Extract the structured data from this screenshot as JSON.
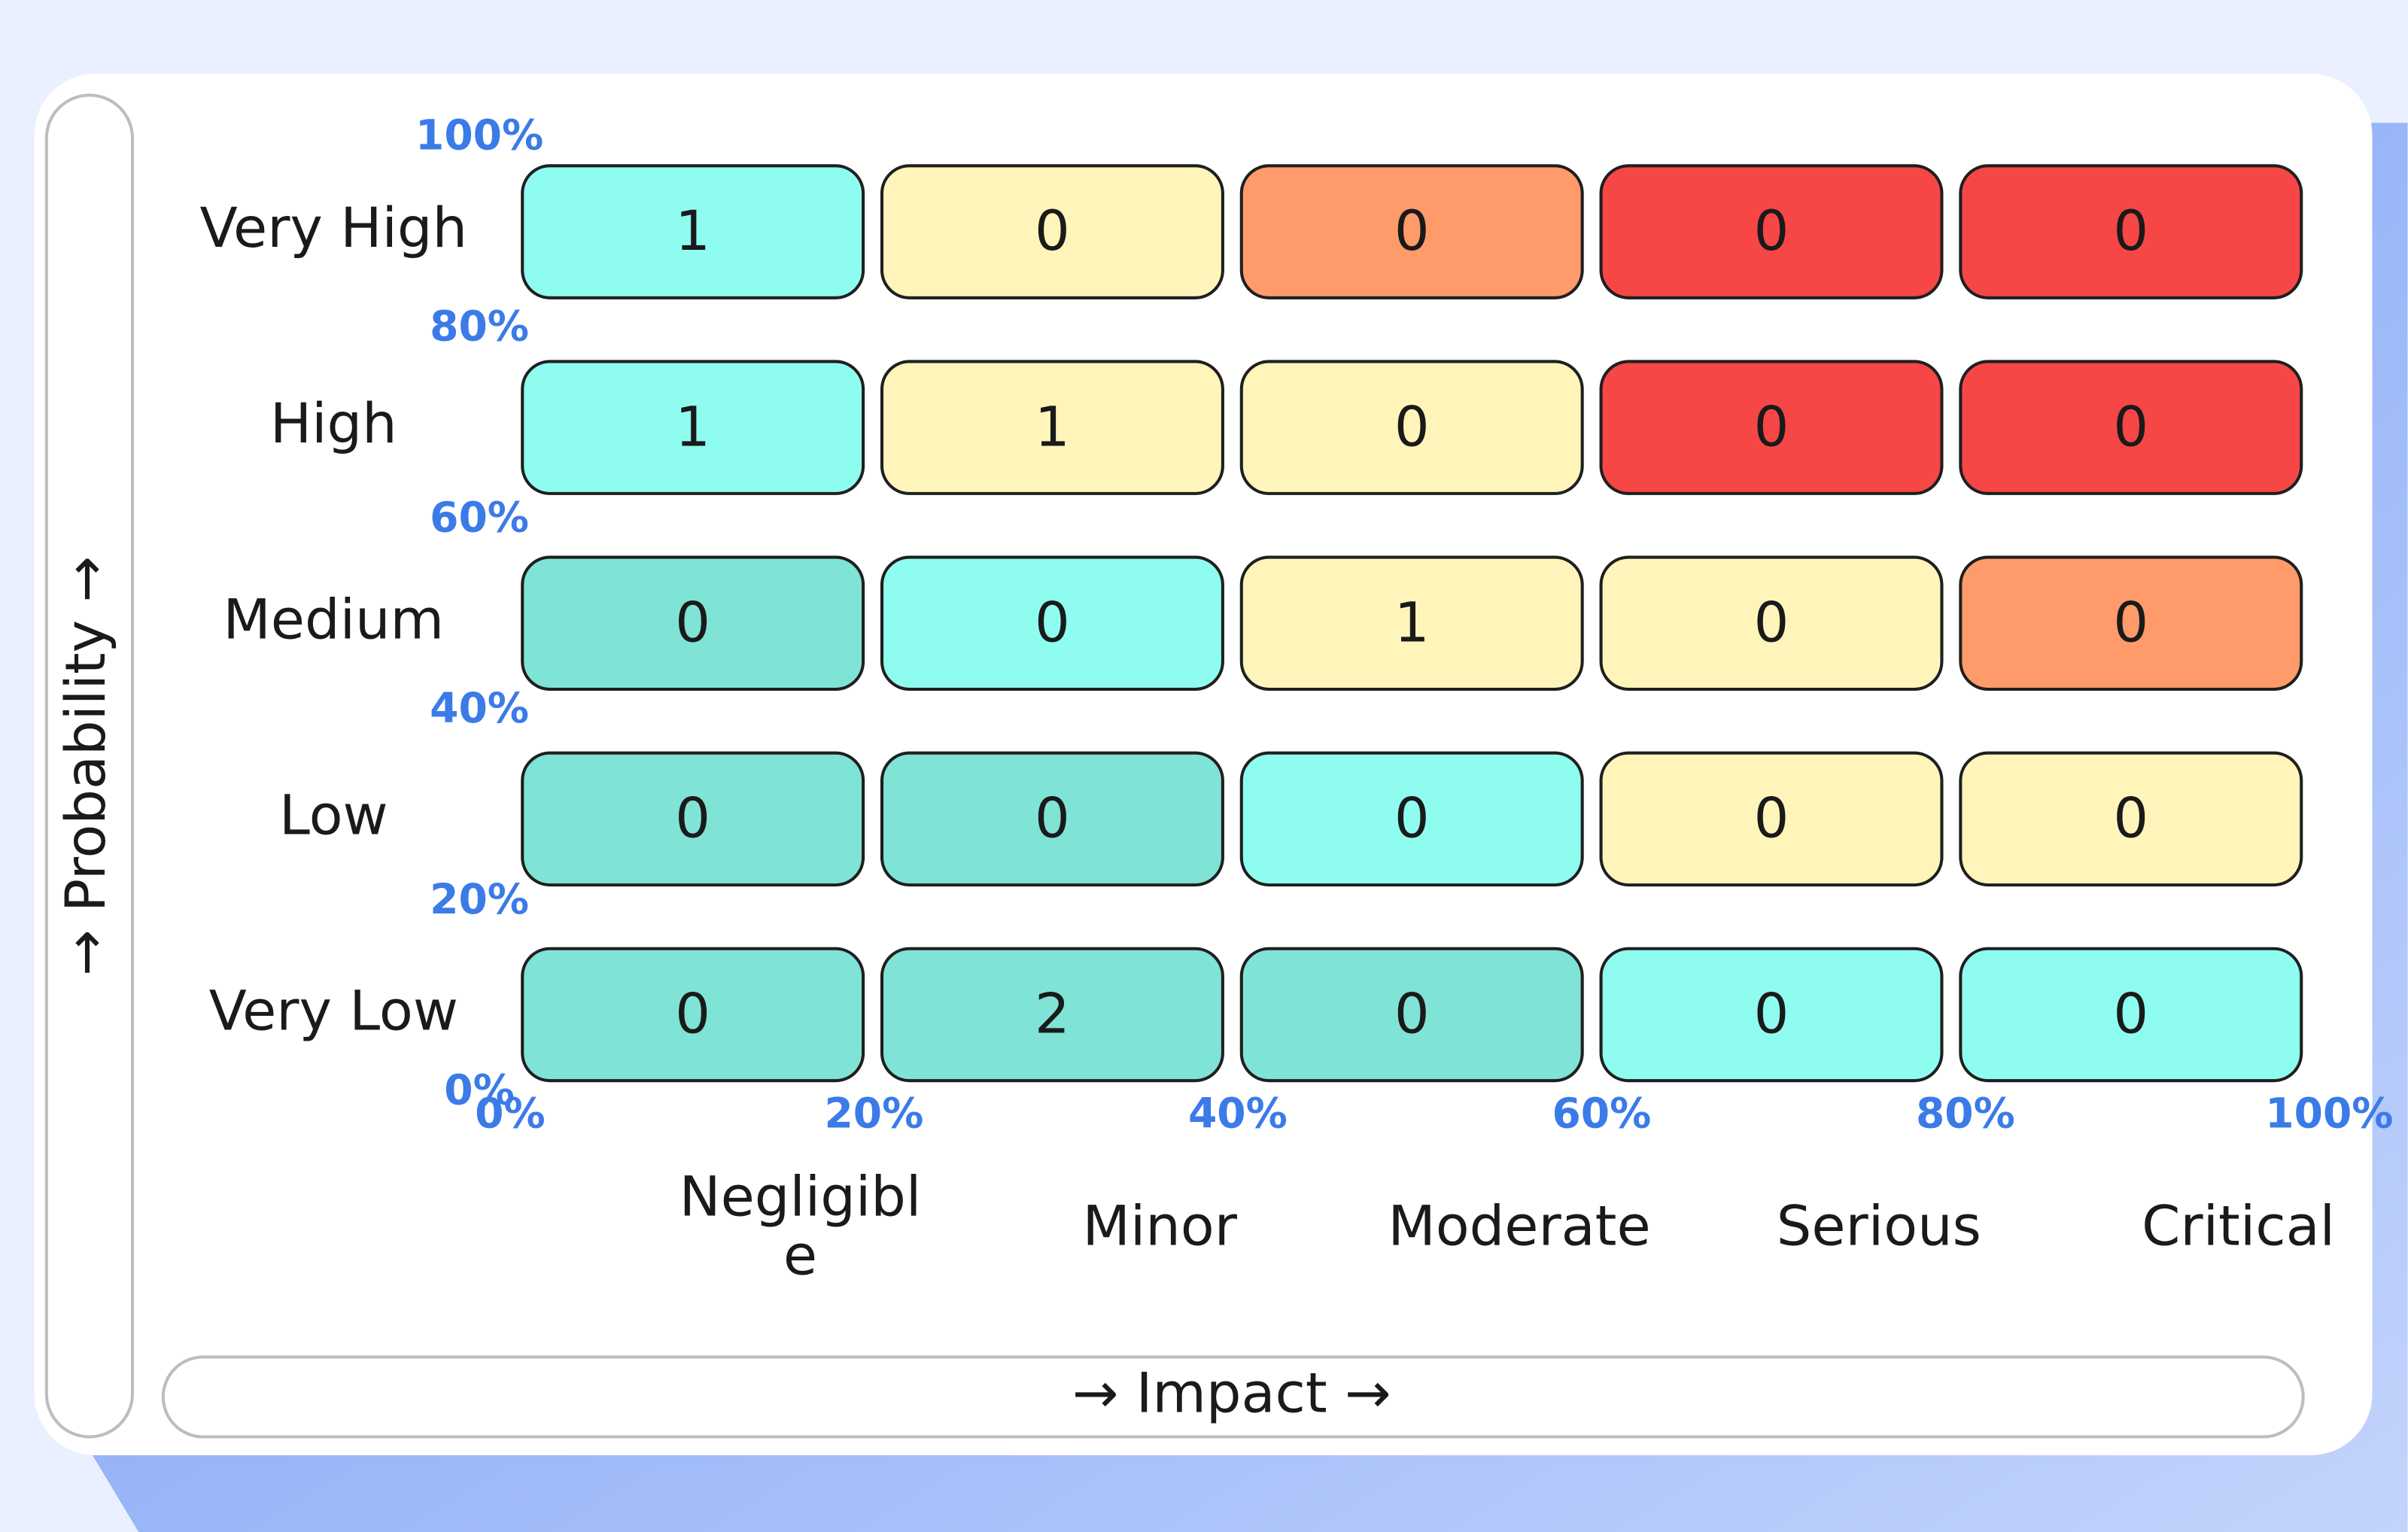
{
  "chart_data": {
    "type": "heatmap",
    "x_label": "→ Impact →",
    "y_label": "→ Probability →",
    "categories": [
      "Negligible",
      "Minor",
      "Moderate",
      "Serious",
      "Critical"
    ],
    "rows": [
      "Very High",
      "High",
      "Medium",
      "Low",
      "Very Low"
    ],
    "values": [
      [
        1,
        0,
        0,
        0,
        0
      ],
      [
        1,
        1,
        0,
        0,
        0
      ],
      [
        0,
        0,
        1,
        0,
        0
      ],
      [
        0,
        0,
        0,
        0,
        0
      ],
      [
        0,
        2,
        0,
        0,
        0
      ]
    ],
    "cell_colors": [
      [
        "#8ffcf0",
        "#fff5bb",
        "#ff9b6a",
        "#f64646",
        "#f64646"
      ],
      [
        "#8ffcf0",
        "#fff5bb",
        "#fff5bb",
        "#f64646",
        "#f64646"
      ],
      [
        "#7fe3d6",
        "#8ffcf0",
        "#fff5bb",
        "#fff5bb",
        "#ff9b6a"
      ],
      [
        "#7fe3d6",
        "#7fe3d6",
        "#8ffcf0",
        "#fff5bb",
        "#fff5bb"
      ],
      [
        "#7fe3d6",
        "#7fe3d6",
        "#7fe3d6",
        "#8ffcf0",
        "#8ffcf0"
      ]
    ],
    "xlim": [
      0,
      100
    ],
    "ylim": [
      0,
      100
    ],
    "xticks": [
      {
        "value": 0,
        "label": "0%"
      },
      {
        "value": 20,
        "label": "20%"
      },
      {
        "value": 40,
        "label": "40%"
      },
      {
        "value": 60,
        "label": "60%"
      },
      {
        "value": 80,
        "label": "80%"
      },
      {
        "value": 100,
        "label": "100%"
      }
    ],
    "yticks": [
      {
        "value": 0,
        "label": "0%"
      },
      {
        "value": 20,
        "label": "20%"
      },
      {
        "value": 40,
        "label": "40%"
      },
      {
        "value": 60,
        "label": "60%"
      },
      {
        "value": 80,
        "label": "80%"
      },
      {
        "value": 100,
        "label": "100%"
      }
    ],
    "tick_color": "#3b7be8"
  }
}
